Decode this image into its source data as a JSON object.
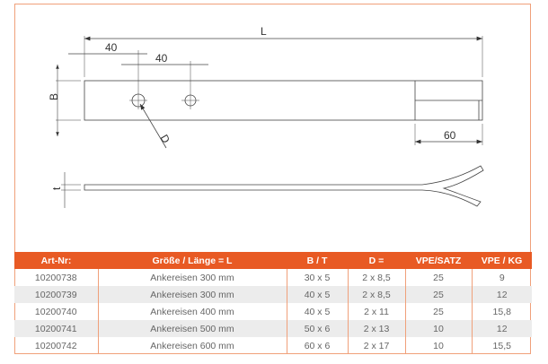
{
  "drawing": {
    "L": "L",
    "dim1": "40",
    "dim2": "40",
    "B": "B",
    "D": "D",
    "end": "60",
    "t": "t"
  },
  "table": {
    "headers": [
      "Art-Nr:",
      "Größe / Länge = L",
      "B / T",
      "D =",
      "VPE/SATZ",
      "VPE / KG"
    ],
    "rows": [
      [
        "10200738",
        "Ankereisen 300 mm",
        "30 x 5",
        "2 x 8,5",
        "25",
        "9"
      ],
      [
        "10200739",
        "Ankereisen 300 mm",
        "40 x 5",
        "2 x 8,5",
        "25",
        "12"
      ],
      [
        "10200740",
        "Ankereisen 400 mm",
        "40 x 5",
        "2 x 11",
        "25",
        "15,8"
      ],
      [
        "10200741",
        "Ankereisen 500 mm",
        "50 x 6",
        "2 x 13",
        "10",
        "12"
      ],
      [
        "10200742",
        "Ankereisen 600 mm",
        "60 x 6",
        "2 x 17",
        "10",
        "15,5"
      ]
    ]
  },
  "colors": {
    "accent": "#e85a24"
  }
}
